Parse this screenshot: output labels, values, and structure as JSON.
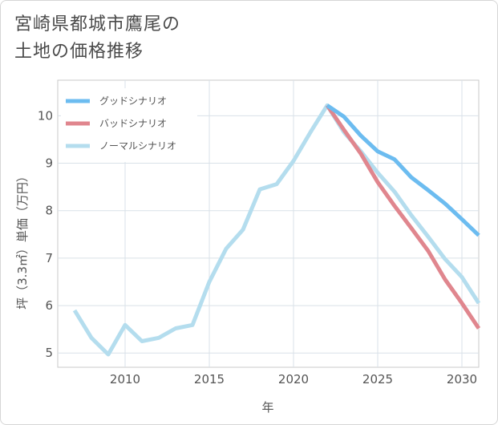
{
  "title": {
    "line1": "宮崎県都城市鷹尾の",
    "line2": "土地の価格推移"
  },
  "chart_data": {
    "type": "line",
    "xlabel": "年",
    "ylabel": "坪（3.3㎡）単価（万円）",
    "xlim": [
      2006,
      2031
    ],
    "ylim": [
      4.7,
      10.75
    ],
    "xticks": [
      2010,
      2015,
      2020,
      2025,
      2030
    ],
    "yticks": [
      5,
      6,
      7,
      8,
      9,
      10
    ],
    "grid": true,
    "legend_position": "top-left",
    "series": [
      {
        "name": "グッドシナリオ",
        "color": "#6cbcf0",
        "x": [
          2022,
          2023,
          2024,
          2025,
          2026,
          2027,
          2028,
          2029,
          2030,
          2031
        ],
        "values": [
          10.22,
          9.98,
          9.58,
          9.25,
          9.08,
          8.7,
          8.43,
          8.15,
          7.82,
          7.48
        ]
      },
      {
        "name": "バッドシナリオ",
        "color": "#e0868e",
        "x": [
          2022,
          2023,
          2024,
          2025,
          2026,
          2027,
          2028,
          2029,
          2030,
          2031
        ],
        "values": [
          10.22,
          9.7,
          9.2,
          8.6,
          8.1,
          7.63,
          7.15,
          6.55,
          6.05,
          5.52
        ]
      },
      {
        "name": "ノーマルシナリオ",
        "color": "#b4ddee",
        "x": [
          2007,
          2008,
          2009,
          2010,
          2011,
          2012,
          2013,
          2014,
          2015,
          2016,
          2017,
          2018,
          2019,
          2020,
          2021,
          2022,
          2023,
          2024,
          2025,
          2026,
          2027,
          2028,
          2029,
          2030,
          2031
        ],
        "values": [
          5.9,
          5.32,
          4.97,
          5.59,
          5.25,
          5.32,
          5.52,
          5.59,
          6.5,
          7.2,
          7.6,
          8.45,
          8.56,
          9.05,
          9.65,
          10.22,
          9.65,
          9.25,
          8.8,
          8.4,
          7.9,
          7.45,
          6.98,
          6.6,
          6.05
        ]
      }
    ]
  }
}
